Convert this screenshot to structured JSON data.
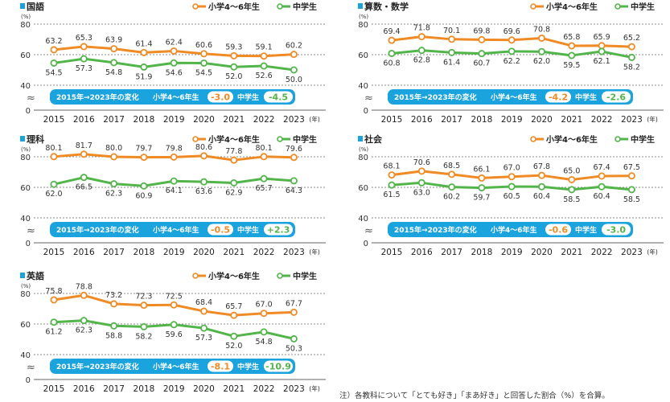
{
  "colors": {
    "elementary": "#f08a24",
    "junior": "#52b54a",
    "accent": "#1ba3dd",
    "grid": "#666666",
    "text": "#333333"
  },
  "legend": {
    "elementary": "小学4～6年生",
    "junior": "中学生"
  },
  "axis": {
    "percent_unit": "(%)",
    "year_unit": "(年)",
    "break_symbol": "≈"
  },
  "change_label": "2015年→2023年の変化",
  "note": "注）各教科について「とても好き」「まあ好き」と回答した割合（%）を合算。",
  "chart_data": [
    {
      "type": "line",
      "title": "国語",
      "categories": [
        "2015",
        "2016",
        "2017",
        "2018",
        "2019",
        "2020",
        "2021",
        "2022",
        "2023"
      ],
      "series": [
        {
          "name": "小学4～6年生",
          "values": [
            63.2,
            65.3,
            63.9,
            61.4,
            62.4,
            60.6,
            59.3,
            59.1,
            60.2
          ]
        },
        {
          "name": "中学生",
          "values": [
            54.5,
            57.3,
            54.8,
            51.9,
            54.6,
            54.5,
            52.0,
            52.6,
            50.0
          ]
        }
      ],
      "change": {
        "elementary": "-3.0",
        "junior": "-4.5"
      },
      "ylabel": "(%)",
      "xlabel": "(年)",
      "yticks": [
        0,
        40,
        60,
        80
      ],
      "ylim": [
        0,
        80
      ],
      "axis_break": true,
      "grid": true,
      "legend": "top-right"
    },
    {
      "type": "line",
      "title": "算数・数学",
      "categories": [
        "2015",
        "2016",
        "2017",
        "2018",
        "2019",
        "2020",
        "2021",
        "2022",
        "2023"
      ],
      "series": [
        {
          "name": "小学4～6年生",
          "values": [
            69.4,
            71.8,
            70.1,
            69.8,
            69.6,
            70.8,
            65.8,
            65.9,
            65.2
          ]
        },
        {
          "name": "中学生",
          "values": [
            60.8,
            62.8,
            61.4,
            60.7,
            62.2,
            62.0,
            59.5,
            62.1,
            58.2
          ]
        }
      ],
      "change": {
        "elementary": "-4.2",
        "junior": "-2.6"
      },
      "ylabel": "(%)",
      "xlabel": "(年)",
      "yticks": [
        0,
        40,
        60,
        80
      ],
      "ylim": [
        0,
        80
      ],
      "axis_break": true,
      "grid": true,
      "legend": "top-right"
    },
    {
      "type": "line",
      "title": "理科",
      "categories": [
        "2015",
        "2016",
        "2017",
        "2018",
        "2019",
        "2020",
        "2021",
        "2022",
        "2023"
      ],
      "series": [
        {
          "name": "小学4～6年生",
          "values": [
            80.1,
            81.7,
            80.0,
            79.7,
            79.8,
            80.6,
            77.8,
            80.1,
            79.6
          ]
        },
        {
          "name": "中学生",
          "values": [
            62.0,
            66.5,
            62.3,
            60.9,
            64.1,
            63.6,
            62.9,
            65.7,
            64.3
          ]
        }
      ],
      "change": {
        "elementary": "-0.5",
        "junior": "+2.3"
      },
      "ylabel": "(%)",
      "xlabel": "(年)",
      "yticks": [
        0,
        40,
        60,
        80
      ],
      "ylim": [
        0,
        80
      ],
      "axis_break": true,
      "grid": true,
      "legend": "top-right"
    },
    {
      "type": "line",
      "title": "社会",
      "categories": [
        "2015",
        "2016",
        "2017",
        "2018",
        "2019",
        "2020",
        "2021",
        "2022",
        "2023"
      ],
      "series": [
        {
          "name": "小学4～6年生",
          "values": [
            68.1,
            70.6,
            68.5,
            66.1,
            67.0,
            67.8,
            65.0,
            67.4,
            67.5
          ]
        },
        {
          "name": "中学生",
          "values": [
            61.5,
            63.0,
            60.2,
            59.7,
            60.5,
            60.4,
            58.5,
            60.4,
            58.5
          ]
        }
      ],
      "change": {
        "elementary": "-0.6",
        "junior": "-3.0"
      },
      "ylabel": "(%)",
      "xlabel": "(年)",
      "yticks": [
        0,
        40,
        60,
        80
      ],
      "ylim": [
        0,
        80
      ],
      "axis_break": true,
      "grid": true,
      "legend": "top-right"
    },
    {
      "type": "line",
      "title": "英語",
      "categories": [
        "2015",
        "2016",
        "2017",
        "2018",
        "2019",
        "2020",
        "2021",
        "2022",
        "2023"
      ],
      "series": [
        {
          "name": "小学4～6年生",
          "values": [
            75.8,
            78.8,
            73.2,
            72.3,
            72.5,
            68.4,
            65.7,
            67.0,
            67.7
          ]
        },
        {
          "name": "中学生",
          "values": [
            61.2,
            62.3,
            58.8,
            58.2,
            59.6,
            57.3,
            52.0,
            54.8,
            50.3
          ]
        }
      ],
      "change": {
        "elementary": "-8.1",
        "junior": "-10.9"
      },
      "ylabel": "(%)",
      "xlabel": "(年)",
      "yticks": [
        0,
        40,
        60,
        80
      ],
      "ylim": [
        0,
        80
      ],
      "axis_break": true,
      "grid": true,
      "legend": "top-right"
    }
  ]
}
